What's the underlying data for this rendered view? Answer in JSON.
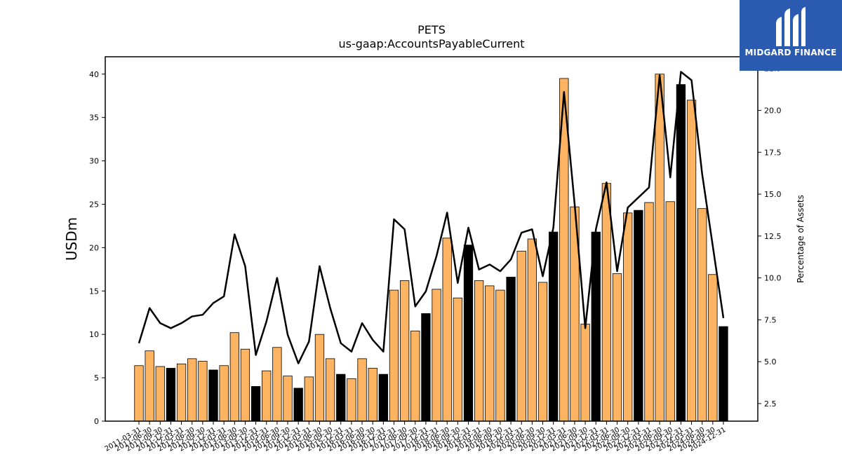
{
  "logo": {
    "text": "MIDGARD FINANCE",
    "mark": "midgard-logo-icon"
  },
  "chart_data": {
    "type": "bar",
    "title": "PETS",
    "subtitle": "us-gaap:AccountsPayableCurrent",
    "ylabel": "USDm",
    "y2label": "Percentage of Assets",
    "ylim": [
      0,
      42
    ],
    "y2lim": [
      1.45,
      23.2
    ],
    "yticks": [
      0,
      5,
      10,
      15,
      20,
      25,
      30,
      35,
      40
    ],
    "y2ticks": [
      2.5,
      5.0,
      7.5,
      10.0,
      12.5,
      15.0,
      17.5,
      20.0,
      22.5
    ],
    "colors": {
      "bar": "#fdb462",
      "bar_fy": "#000000",
      "line": "#000000"
    },
    "categories": [
      "2011-03-31",
      "2011-06-30",
      "2011-09-30",
      "2011-12-31",
      "2012-03-31",
      "2012-06-30",
      "2012-09-30",
      "2012-12-31",
      "2013-03-31",
      "2013-06-30",
      "2013-09-30",
      "2013-12-31",
      "2014-03-31",
      "2014-06-30",
      "2014-09-30",
      "2014-12-31",
      "2015-03-31",
      "2015-06-30",
      "2015-09-30",
      "2015-12-31",
      "2016-03-31",
      "2016-06-30",
      "2016-09-30",
      "2016-12-31",
      "2017-03-31",
      "2017-06-30",
      "2017-09-30",
      "2017-12-31",
      "2018-03-31",
      "2018-06-30",
      "2018-09-30",
      "2018-12-31",
      "2019-03-31",
      "2019-06-30",
      "2019-09-30",
      "2019-12-31",
      "2020-03-31",
      "2020-06-30",
      "2020-09-30",
      "2020-12-31",
      "2021-03-31",
      "2021-06-30",
      "2021-09-30",
      "2021-12-31",
      "2022-03-31",
      "2022-06-30",
      "2022-09-30",
      "2022-12-31",
      "2023-03-31",
      "2023-06-30",
      "2023-09-30",
      "2023-12-31",
      "2024-03-31",
      "2024-06-30",
      "2024-09-30",
      "2024-12-31"
    ],
    "xtick_labels": [
      "2011-03-31",
      "2011-06-30",
      "2011-09-30",
      "2011-12-31",
      "2012-03-31",
      "2012-06-30",
      "2012-09-30",
      "2012-12-31",
      "2013-03-31",
      "2013-06-30",
      "2013-09-30",
      "2013-12-31",
      "2014-03-31",
      "2014-06-30",
      "2014-09-30",
      "2014-12-31",
      "2015-03-31",
      "2015-06-30",
      "2015-09-30",
      "2015-12-31",
      "2016-03-31",
      "2016-06-30",
      "2016-09-30",
      "2016-12-31",
      "2017-03-31",
      "2017-06-30",
      "2017-09-30",
      "2017-12-31",
      "2018-03-31",
      "2018-06-30",
      "2018-09-30",
      "2018-12-31",
      "2019-03-31",
      "2019-06-30",
      "2019-09-30",
      "2019-12-31",
      "2020-03-31",
      "2020-06-30",
      "2020-09-30",
      "2020-12-31",
      "2021-03-31",
      "2021-06-30",
      "2021-09-30",
      "2021-12-31",
      "2022-03-31",
      "2022-06-30",
      "2022-09-30",
      "2022-12-31",
      "2023-03-31",
      "2023-06-30",
      "2023-09-30",
      "2023-12-31",
      "2024-03-31",
      "2024-06-30",
      "2024-09-30",
      "2024-12-31"
    ],
    "values": [
      6.4,
      8.1,
      6.3,
      6.1,
      6.6,
      7.2,
      6.9,
      5.9,
      6.4,
      10.2,
      8.3,
      4.0,
      5.8,
      8.5,
      5.2,
      3.8,
      5.1,
      10.0,
      7.2,
      5.4,
      4.9,
      7.2,
      6.1,
      5.4,
      15.1,
      16.2,
      10.4,
      12.4,
      15.2,
      21.1,
      14.2,
      20.3,
      16.2,
      15.6,
      15.1,
      16.6,
      19.6,
      21.0,
      16.0,
      21.8,
      39.5,
      24.7,
      11.2,
      21.8,
      27.4,
      17.0,
      24.0,
      24.3,
      25.2,
      40.0,
      25.3,
      38.8,
      37.0,
      24.5,
      16.9,
      10.9
    ],
    "fiscal_year_end": [
      false,
      false,
      false,
      true,
      false,
      false,
      false,
      true,
      false,
      false,
      false,
      true,
      false,
      false,
      false,
      true,
      false,
      false,
      false,
      true,
      false,
      false,
      false,
      true,
      false,
      false,
      false,
      true,
      false,
      false,
      false,
      true,
      false,
      false,
      false,
      true,
      false,
      false,
      false,
      true,
      false,
      false,
      false,
      true,
      false,
      false,
      false,
      true,
      false,
      false,
      false,
      true,
      false,
      false,
      false,
      true
    ],
    "pct_of_assets": [
      6.1,
      8.2,
      7.3,
      7.0,
      7.3,
      7.7,
      7.8,
      8.5,
      8.9,
      12.6,
      10.7,
      5.4,
      7.4,
      10.0,
      6.6,
      4.9,
      6.2,
      10.7,
      8.2,
      6.1,
      5.6,
      7.3,
      6.3,
      5.6,
      13.5,
      12.9,
      8.3,
      9.2,
      11.3,
      13.9,
      9.7,
      13.0,
      10.5,
      10.8,
      10.4,
      11.1,
      12.7,
      12.9,
      10.1,
      13.0,
      21.1,
      14.4,
      7.0,
      12.9,
      15.7,
      10.4,
      14.2,
      14.8,
      15.4,
      22.1,
      16.0,
      22.3,
      21.8,
      16.2,
      11.9,
      7.6
    ]
  }
}
